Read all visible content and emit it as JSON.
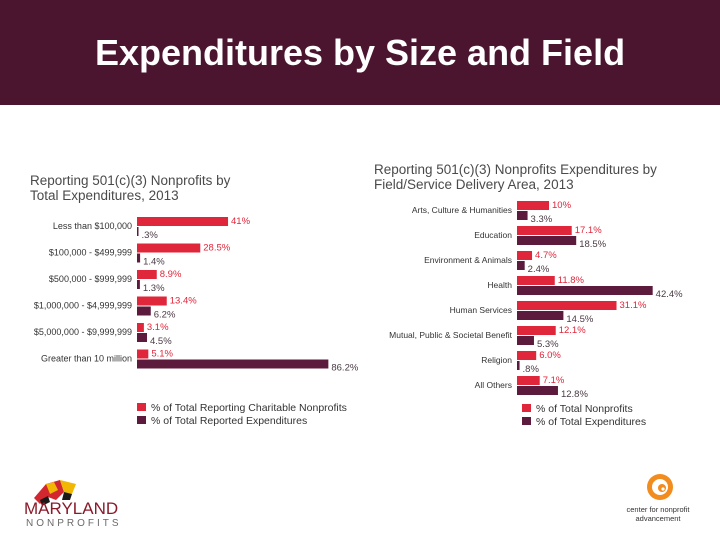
{
  "slide": {
    "title": "Expenditures by Size and Field"
  },
  "colors": {
    "title_bg": "#4b1530",
    "series_red": "#e0263a",
    "series_purple": "#5c1a3d"
  },
  "chart_data": [
    {
      "type": "bar",
      "orientation": "horizontal",
      "title_lines": [
        "Reporting 501(c)(3) Nonprofits by",
        "Total Expenditures, 2013"
      ],
      "categories": [
        "Less than $100,000",
        "$100,000 - $499,999",
        "$500,000 - $999,999",
        "$1,000,000 - $4,999,999",
        "$5,000,000 - $9,999,999",
        "Greater than 10 million"
      ],
      "series": [
        {
          "name": "% of Total Reporting Charitable Nonprofits",
          "values": [
            41,
            28.5,
            8.9,
            13.4,
            3.1,
            5.1
          ],
          "labels": [
            "41%",
            "28.5%",
            "8.9%",
            "13.4%",
            "3.1%",
            "5.1%"
          ]
        },
        {
          "name": "% of Total Reported Expenditures",
          "values": [
            0.3,
            1.4,
            1.3,
            6.2,
            4.5,
            86.2
          ],
          "labels": [
            ".3%",
            "1.4%",
            "1.3%",
            "6.2%",
            "4.5%",
            "86.2%"
          ]
        }
      ],
      "xlim": [
        0,
        100
      ],
      "legend": "bottom-left"
    },
    {
      "type": "bar",
      "orientation": "horizontal",
      "title_lines": [
        "Reporting 501(c)(3) Nonprofits Expenditures by",
        "Field/Service Delivery Area, 2013"
      ],
      "categories": [
        "Arts, Culture & Humanities",
        "Education",
        "Environment & Animals",
        "Health",
        "Human Services",
        "Mutual, Public & Societal Benefit",
        "Religion",
        "All Others"
      ],
      "series": [
        {
          "name": "% of Total Nonprofits",
          "values": [
            10,
            17.1,
            4.7,
            11.8,
            31.1,
            12.1,
            6.0,
            7.1
          ],
          "labels": [
            "10%",
            "17.1%",
            "4.7%",
            "11.8%",
            "31.1%",
            "12.1%",
            "6.0%",
            "7.1%"
          ]
        },
        {
          "name": "% of Total Expenditures",
          "values": [
            3.3,
            18.5,
            2.4,
            42.4,
            14.5,
            5.3,
            0.8,
            12.8
          ],
          "labels": [
            "3.3%",
            "18.5%",
            "2.4%",
            "42.4%",
            "14.5%",
            "5.3%",
            ".8%",
            "12.8%"
          ]
        }
      ],
      "xlim": [
        0,
        50
      ],
      "legend": "bottom-left"
    }
  ],
  "logos": {
    "maryland": {
      "line1": "MARYLAND",
      "line2": "NONPROFITS"
    },
    "center": {
      "line1": "center for nonprofit",
      "line2": "advancement"
    }
  }
}
